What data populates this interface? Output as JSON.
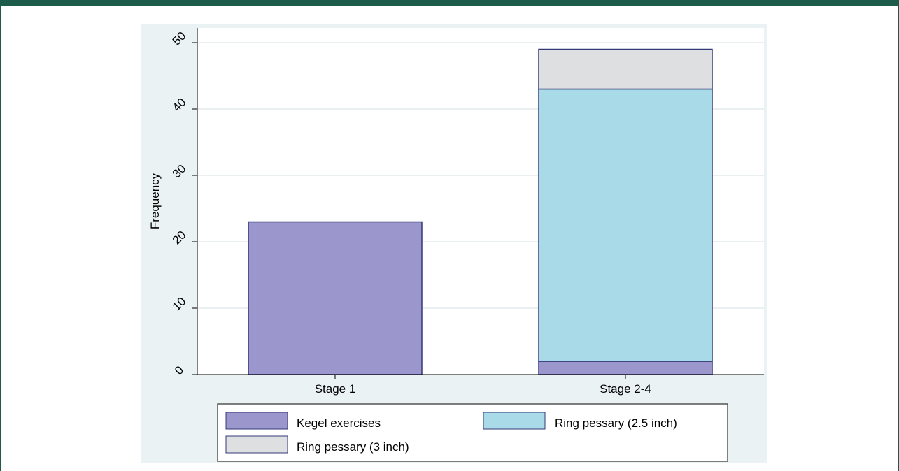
{
  "colors": {
    "border": "#1d5c4a",
    "figure_background": "#eaf2f3",
    "plot_background": "#ffffff",
    "gridline": "#e3ecee",
    "bar_outline": "#343a7a"
  },
  "chart_data": {
    "type": "bar",
    "stacked": true,
    "title": "",
    "xlabel": "",
    "ylabel": "Frequency",
    "ylim": [
      0,
      52
    ],
    "yticks": [
      0,
      10,
      20,
      30,
      40,
      50
    ],
    "ytick_labels": [
      "0",
      "10",
      "20",
      "30",
      "40",
      "50"
    ],
    "grid": true,
    "legend_position": "bottom",
    "categories": [
      "Stage 1",
      "Stage 2-4"
    ],
    "series": [
      {
        "name": "Kegel exercises",
        "color": "#9b96cb",
        "values": [
          23,
          2
        ]
      },
      {
        "name": "Ring pessary (2.5 inch)",
        "color": "#a8dae8",
        "values": [
          0,
          41
        ]
      },
      {
        "name": "Ring pessary (3 inch)",
        "color": "#dedfe1",
        "values": [
          0,
          6
        ]
      }
    ]
  }
}
